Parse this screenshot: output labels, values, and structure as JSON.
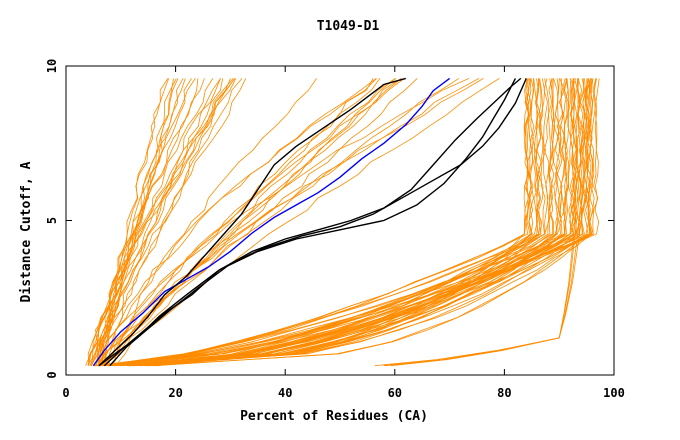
{
  "chart_data": {
    "type": "line",
    "title": "T1049-D1",
    "xlabel": "Percent of Residues (CA)",
    "ylabel": "Distance Cutoff, A",
    "xlim": [
      0,
      100
    ],
    "ylim": [
      0,
      10
    ],
    "x_ticks": [
      "0",
      "20",
      "40",
      "60",
      "80",
      "100"
    ],
    "y_ticks": [
      "0",
      "5",
      "10"
    ],
    "grid": false,
    "colors": {
      "background_models": "#ff8c00",
      "highlight_blue": "#0000ff",
      "highlight_black": "#000000"
    },
    "series": [
      {
        "color": "blue",
        "x": [
          5,
          7,
          10,
          14,
          18,
          22,
          26,
          30,
          34,
          38,
          42,
          46,
          50,
          54,
          58,
          62,
          65,
          67,
          70
        ],
        "y": [
          0.3,
          0.8,
          1.4,
          2.0,
          2.7,
          3.1,
          3.5,
          4.0,
          4.6,
          5.1,
          5.5,
          5.9,
          6.4,
          7.0,
          7.5,
          8.1,
          8.7,
          9.2,
          9.6
        ]
      },
      {
        "color": "black",
        "x": [
          6,
          9,
          12,
          15,
          18,
          22,
          26,
          29,
          32,
          35,
          38,
          42,
          47,
          52,
          55,
          58,
          62
        ],
        "y": [
          0.3,
          0.8,
          1.3,
          1.9,
          2.6,
          3.2,
          4.0,
          4.6,
          5.2,
          6.0,
          6.8,
          7.4,
          8.0,
          8.6,
          9.0,
          9.4,
          9.6
        ]
      },
      {
        "color": "black",
        "x": [
          7,
          10,
          14,
          18,
          23,
          28,
          34,
          40,
          46,
          52,
          58,
          63,
          67,
          71,
          75,
          78,
          81,
          83
        ],
        "y": [
          0.3,
          0.8,
          1.4,
          2.0,
          2.6,
          3.4,
          4.0,
          4.4,
          4.7,
          5.0,
          5.4,
          6.0,
          6.8,
          7.6,
          8.3,
          8.8,
          9.3,
          9.6
        ]
      },
      {
        "color": "black",
        "x": [
          8,
          11,
          15,
          19,
          24,
          30,
          36,
          43,
          50,
          56,
          62,
          67,
          72,
          76,
          79,
          82,
          84
        ],
        "y": [
          0.3,
          0.9,
          1.5,
          2.1,
          2.8,
          3.6,
          4.1,
          4.5,
          4.8,
          5.2,
          5.8,
          6.3,
          6.8,
          7.4,
          8.0,
          8.8,
          9.6
        ]
      },
      {
        "color": "black",
        "x": [
          6,
          9,
          13,
          17,
          22,
          28,
          35,
          42,
          50,
          58,
          64,
          69,
          73,
          76,
          78,
          80,
          82
        ],
        "y": [
          0.3,
          0.7,
          1.2,
          1.9,
          2.6,
          3.4,
          4.0,
          4.4,
          4.7,
          5.0,
          5.5,
          6.2,
          7.0,
          7.7,
          8.3,
          8.9,
          9.6
        ]
      }
    ]
  }
}
